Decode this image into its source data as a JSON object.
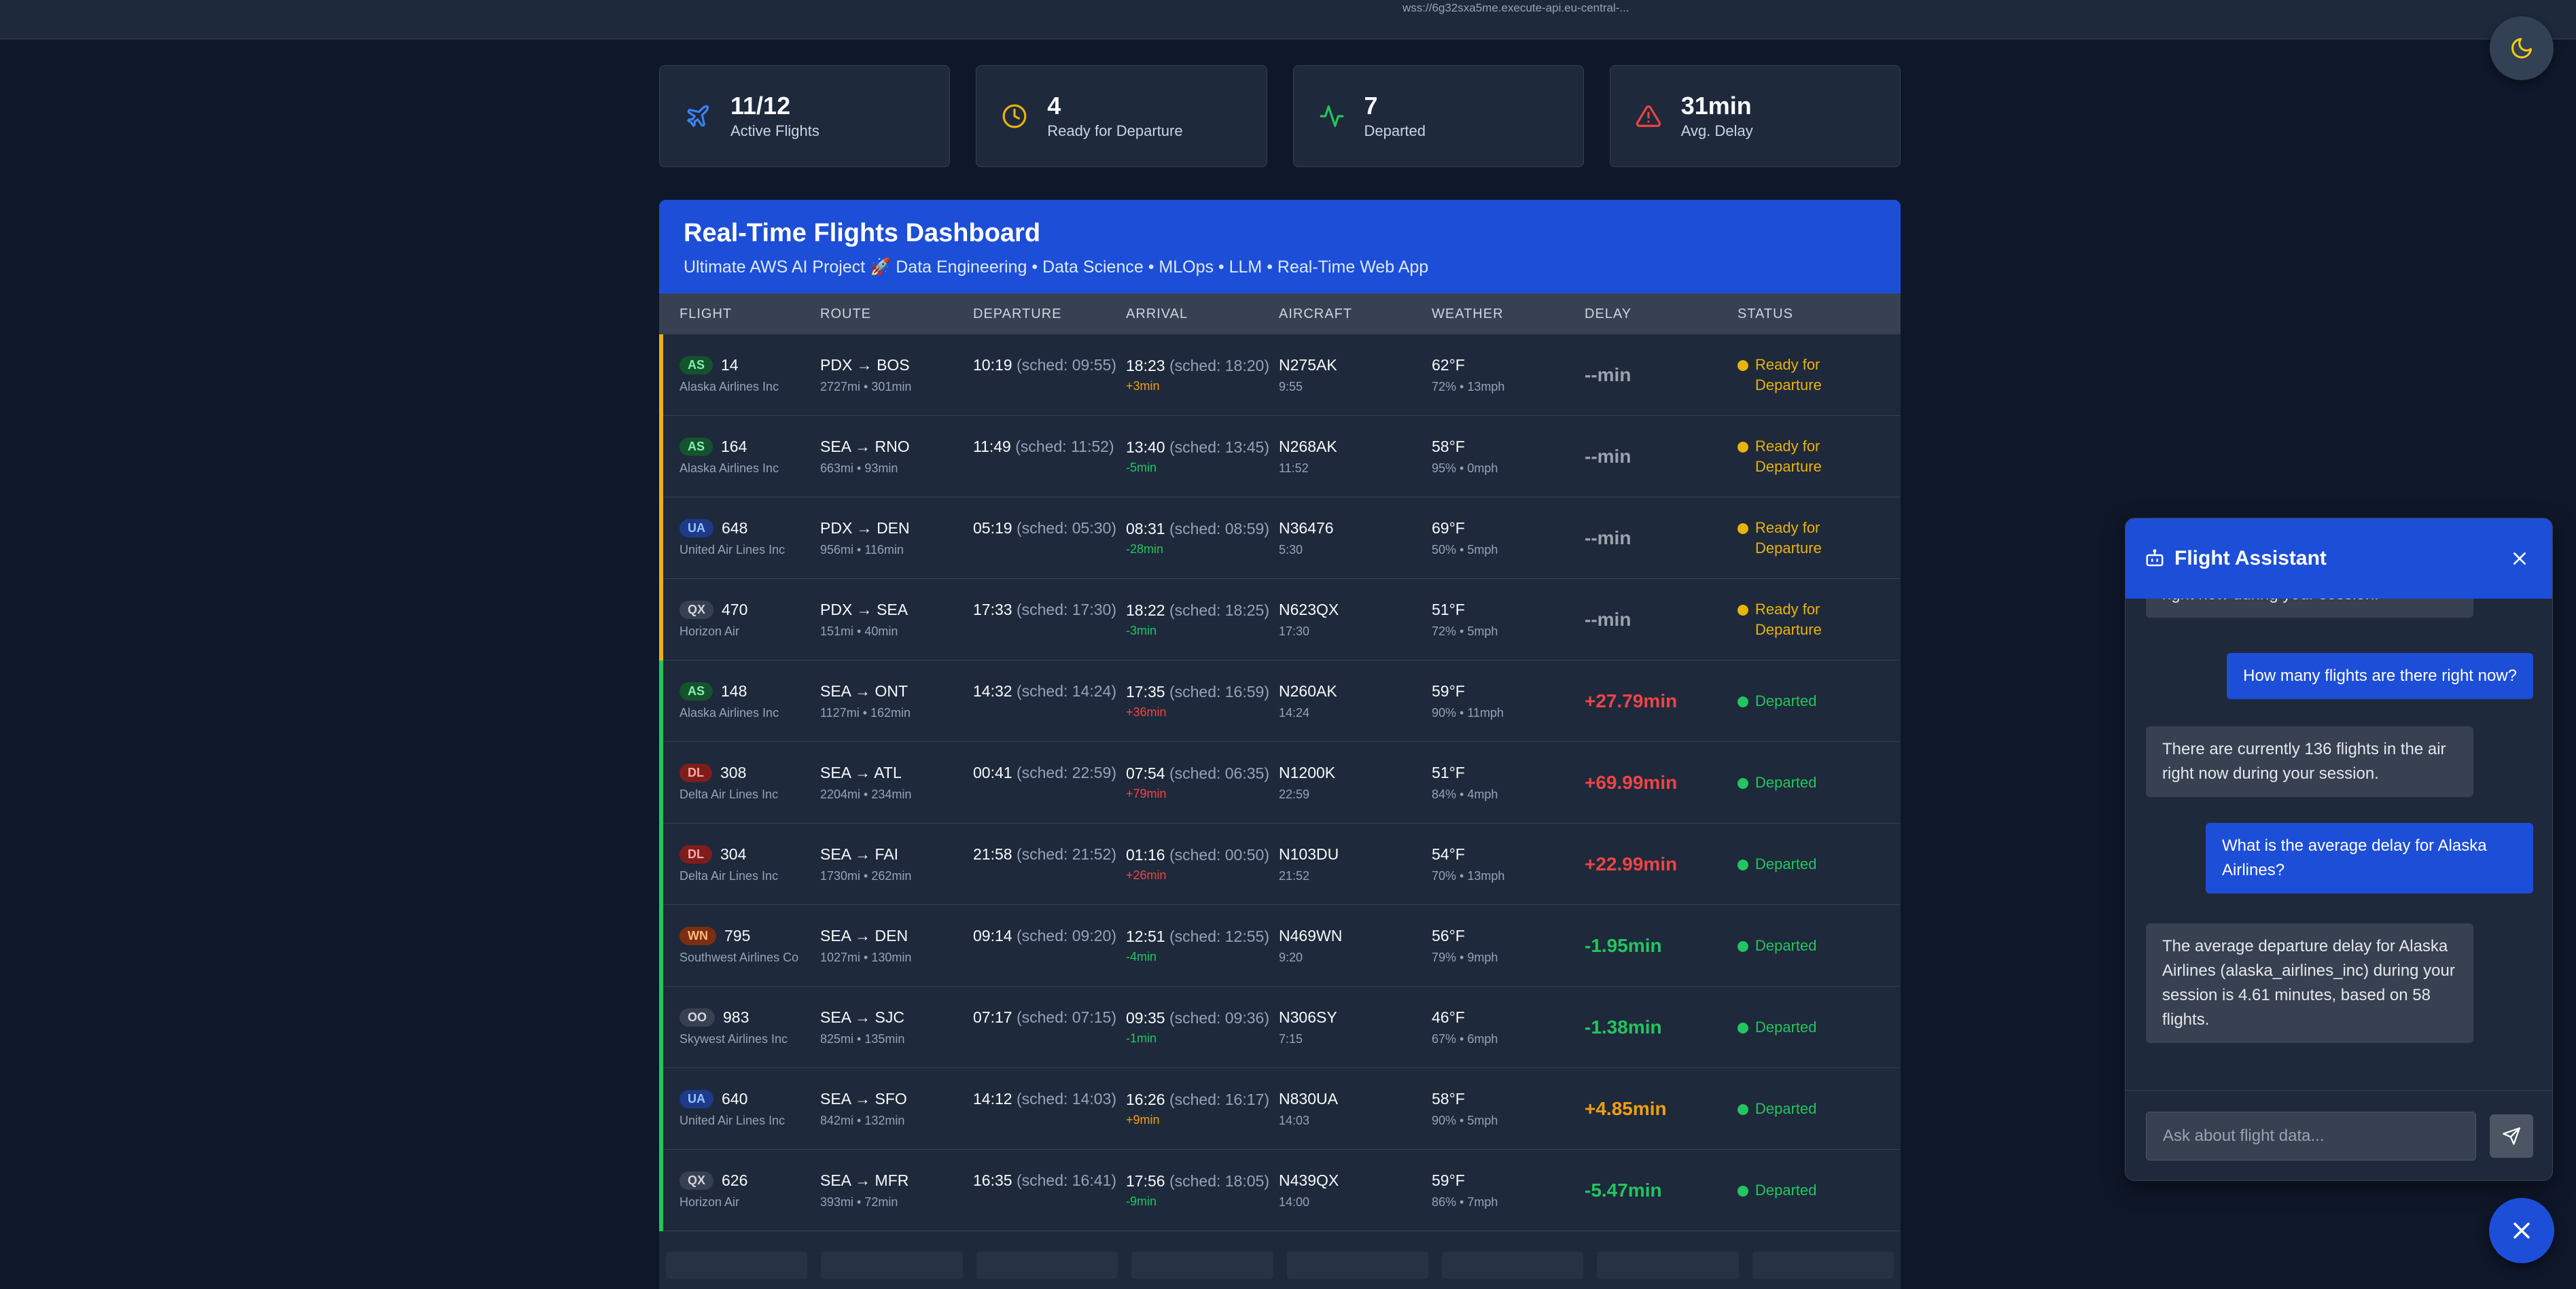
{
  "topbar": {
    "url": "wss://6g32sxa5me.execute-api.eu-central-..."
  },
  "theme_toggle": {
    "icon": "moon-icon"
  },
  "stats": [
    {
      "value": "11/12",
      "label": "Active Flights",
      "icon": "plane-icon",
      "color": "#3b82f6"
    },
    {
      "value": "4",
      "label": "Ready for Departure",
      "icon": "clock-icon",
      "color": "#eab308"
    },
    {
      "value": "7",
      "label": "Departed",
      "icon": "activity-icon",
      "color": "#22c55e"
    },
    {
      "value": "31min",
      "label": "Avg. Delay",
      "icon": "alert-triangle-icon",
      "color": "#ef4444"
    }
  ],
  "dashboard": {
    "title": "Real-Time Flights Dashboard",
    "subtitle": "Ultimate AWS AI Project 🚀 Data Engineering • Data Science • MLOps • LLM • Real-Time Web App",
    "columns": [
      "Flight",
      "Route",
      "Departure",
      "Arrival",
      "Aircraft",
      "Weather",
      "Delay",
      "Status"
    ],
    "rows": [
      {
        "code": "AS",
        "code_bg": "#14532d",
        "code_fg": "#86efac",
        "num": "14",
        "airline": "Alaska Airlines Inc",
        "route": "PDX → BOS",
        "dist": "2727mi • 301min",
        "dep": "10:19",
        "dep_sched": "(sched: 09:55)",
        "arr": "18:23",
        "arr_sched": "(sched: 18:20)",
        "arr_delta": "+3min",
        "arr_delta_color": "#f59e0b",
        "aircraft": "N275AK",
        "aircraft_time": "9:55",
        "temp": "62°F",
        "weather": "72% • 13mph",
        "delay": "--min",
        "delay_color": "#9ca3af",
        "status": "Ready for Departure",
        "status_color": "#eab308",
        "accent": "#eab308"
      },
      {
        "code": "AS",
        "code_bg": "#14532d",
        "code_fg": "#86efac",
        "num": "164",
        "airline": "Alaska Airlines Inc",
        "route": "SEA → RNO",
        "dist": "663mi • 93min",
        "dep": "11:49",
        "dep_sched": "(sched: 11:52)",
        "arr": "13:40",
        "arr_sched": "(sched: 13:45)",
        "arr_delta": "-5min",
        "arr_delta_color": "#22c55e",
        "aircraft": "N268AK",
        "aircraft_time": "11:52",
        "temp": "58°F",
        "weather": "95% • 0mph",
        "delay": "--min",
        "delay_color": "#9ca3af",
        "status": "Ready for Departure",
        "status_color": "#eab308",
        "accent": "#eab308"
      },
      {
        "code": "UA",
        "code_bg": "#1e3a8a",
        "code_fg": "#93c5fd",
        "num": "648",
        "airline": "United Air Lines Inc",
        "route": "PDX → DEN",
        "dist": "956mi • 116min",
        "dep": "05:19",
        "dep_sched": "(sched: 05:30)",
        "arr": "08:31",
        "arr_sched": "(sched: 08:59)",
        "arr_delta": "-28min",
        "arr_delta_color": "#22c55e",
        "aircraft": "N36476",
        "aircraft_time": "5:30",
        "temp": "69°F",
        "weather": "50% • 5mph",
        "delay": "--min",
        "delay_color": "#9ca3af",
        "status": "Ready for Departure",
        "status_color": "#eab308",
        "accent": "#eab308"
      },
      {
        "code": "QX",
        "code_bg": "#374151",
        "code_fg": "#d1d5db",
        "num": "470",
        "airline": "Horizon Air",
        "route": "PDX → SEA",
        "dist": "151mi • 40min",
        "dep": "17:33",
        "dep_sched": "(sched: 17:30)",
        "arr": "18:22",
        "arr_sched": "(sched: 18:25)",
        "arr_delta": "-3min",
        "arr_delta_color": "#22c55e",
        "aircraft": "N623QX",
        "aircraft_time": "17:30",
        "temp": "51°F",
        "weather": "72% • 5mph",
        "delay": "--min",
        "delay_color": "#9ca3af",
        "status": "Ready for Departure",
        "status_color": "#eab308",
        "accent": "#eab308"
      },
      {
        "code": "AS",
        "code_bg": "#14532d",
        "code_fg": "#86efac",
        "num": "148",
        "airline": "Alaska Airlines Inc",
        "route": "SEA → ONT",
        "dist": "1127mi • 162min",
        "dep": "14:32",
        "dep_sched": "(sched: 14:24)",
        "arr": "17:35",
        "arr_sched": "(sched: 16:59)",
        "arr_delta": "+36min",
        "arr_delta_color": "#ef4444",
        "aircraft": "N260AK",
        "aircraft_time": "14:24",
        "temp": "59°F",
        "weather": "90% • 11mph",
        "delay": "+27.79min",
        "delay_color": "#ef4444",
        "status": "Departed",
        "status_color": "#22c55e",
        "accent": "#22c55e"
      },
      {
        "code": "DL",
        "code_bg": "#7f1d1d",
        "code_fg": "#fca5a5",
        "num": "308",
        "airline": "Delta Air Lines Inc",
        "route": "SEA → ATL",
        "dist": "2204mi • 234min",
        "dep": "00:41",
        "dep_sched": "(sched: 22:59)",
        "arr": "07:54",
        "arr_sched": "(sched: 06:35)",
        "arr_delta": "+79min",
        "arr_delta_color": "#ef4444",
        "aircraft": "N1200K",
        "aircraft_time": "22:59",
        "temp": "51°F",
        "weather": "84% • 4mph",
        "delay": "+69.99min",
        "delay_color": "#ef4444",
        "status": "Departed",
        "status_color": "#22c55e",
        "accent": "#22c55e"
      },
      {
        "code": "DL",
        "code_bg": "#7f1d1d",
        "code_fg": "#fca5a5",
        "num": "304",
        "airline": "Delta Air Lines Inc",
        "route": "SEA → FAI",
        "dist": "1730mi • 262min",
        "dep": "21:58",
        "dep_sched": "(sched: 21:52)",
        "arr": "01:16",
        "arr_sched": "(sched: 00:50)",
        "arr_delta": "+26min",
        "arr_delta_color": "#ef4444",
        "aircraft": "N103DU",
        "aircraft_time": "21:52",
        "temp": "54°F",
        "weather": "70% • 13mph",
        "delay": "+22.99min",
        "delay_color": "#ef4444",
        "status": "Departed",
        "status_color": "#22c55e",
        "accent": "#22c55e"
      },
      {
        "code": "WN",
        "code_bg": "#7c2d12",
        "code_fg": "#fdba74",
        "num": "795",
        "airline": "Southwest Airlines Co",
        "route": "SEA → DEN",
        "dist": "1027mi • 130min",
        "dep": "09:14",
        "dep_sched": "(sched: 09:20)",
        "arr": "12:51",
        "arr_sched": "(sched: 12:55)",
        "arr_delta": "-4min",
        "arr_delta_color": "#22c55e",
        "aircraft": "N469WN",
        "aircraft_time": "9:20",
        "temp": "56°F",
        "weather": "79% • 9mph",
        "delay": "-1.95min",
        "delay_color": "#22c55e",
        "status": "Departed",
        "status_color": "#22c55e",
        "accent": "#22c55e"
      },
      {
        "code": "OO",
        "code_bg": "#374151",
        "code_fg": "#d1d5db",
        "num": "983",
        "airline": "Skywest Airlines Inc",
        "route": "SEA → SJC",
        "dist": "825mi • 135min",
        "dep": "07:17",
        "dep_sched": "(sched: 07:15)",
        "arr": "09:35",
        "arr_sched": "(sched: 09:36)",
        "arr_delta": "-1min",
        "arr_delta_color": "#22c55e",
        "aircraft": "N306SY",
        "aircraft_time": "7:15",
        "temp": "46°F",
        "weather": "67% • 6mph",
        "delay": "-1.38min",
        "delay_color": "#22c55e",
        "status": "Departed",
        "status_color": "#22c55e",
        "accent": "#22c55e"
      },
      {
        "code": "UA",
        "code_bg": "#1e3a8a",
        "code_fg": "#93c5fd",
        "num": "640",
        "airline": "United Air Lines Inc",
        "route": "SEA → SFO",
        "dist": "842mi • 132min",
        "dep": "14:12",
        "dep_sched": "(sched: 14:03)",
        "arr": "16:26",
        "arr_sched": "(sched: 16:17)",
        "arr_delta": "+9min",
        "arr_delta_color": "#f59e0b",
        "aircraft": "N830UA",
        "aircraft_time": "14:03",
        "temp": "58°F",
        "weather": "90% • 5mph",
        "delay": "+4.85min",
        "delay_color": "#f59e0b",
        "status": "Departed",
        "status_color": "#22c55e",
        "accent": "#22c55e"
      },
      {
        "code": "QX",
        "code_bg": "#374151",
        "code_fg": "#d1d5db",
        "num": "626",
        "airline": "Horizon Air",
        "route": "SEA → MFR",
        "dist": "393mi • 72min",
        "dep": "16:35",
        "dep_sched": "(sched: 16:41)",
        "arr": "17:56",
        "arr_sched": "(sched: 18:05)",
        "arr_delta": "-9min",
        "arr_delta_color": "#22c55e",
        "aircraft": "N439QX",
        "aircraft_time": "14:00",
        "temp": "59°F",
        "weather": "86% • 7mph",
        "delay": "-5.47min",
        "delay_color": "#22c55e",
        "status": "Departed",
        "status_color": "#22c55e",
        "accent": "#22c55e"
      }
    ]
  },
  "chat": {
    "title": "Flight Assistant",
    "icon": "bot-icon",
    "close_icon": "close-icon",
    "messages": [
      {
        "role": "bot",
        "text": "right now during your session."
      },
      {
        "role": "user",
        "text": "How many flights are there right now?"
      },
      {
        "role": "bot",
        "text": "There are currently 136 flights in the air right now during your session."
      },
      {
        "role": "user",
        "text": "What is the average delay for Alaska Airlines?"
      },
      {
        "role": "bot",
        "text": "The average departure delay for Alaska Airlines (alaska_airlines_inc) during your session is 4.61 minutes, based on 58 flights."
      }
    ],
    "input_placeholder": "Ask about flight data...",
    "send_icon": "send-icon"
  },
  "fab": {
    "icon": "close-icon"
  }
}
